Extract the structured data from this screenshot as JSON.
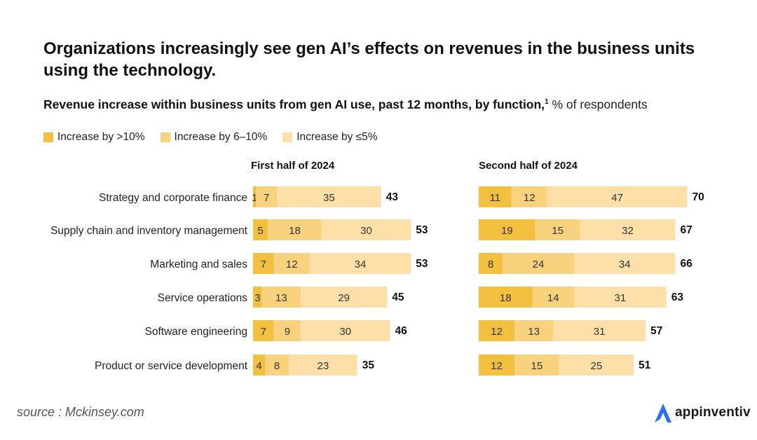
{
  "title": "Organizations increasingly see gen AI’s effects on revenues in the business units using the technology.",
  "subtitle": {
    "main": "Revenue increase within business units from gen AI use, past 12 months, by function,",
    "footnote_marker": "1",
    "unit": " % of respondents"
  },
  "source": "source : Mckinsey.com",
  "logo_text": "appinventiv",
  "colors": {
    "seg1": "#f2bf3f",
    "seg2": "#f8d27d",
    "seg3": "#fde0a8",
    "logo_blue": "#2e6df6"
  },
  "chart_data": {
    "type": "bar",
    "orientation": "horizontal",
    "stacked": true,
    "legend": [
      {
        "name": "Increase by >10%",
        "color": "#f2bf3f"
      },
      {
        "name": "Increase by 6–10%",
        "color": "#f8d27d"
      },
      {
        "name": "Increase by ≤5%",
        "color": "#fde0a8"
      }
    ],
    "categories": [
      "Strategy and corporate finance",
      "Supply chain and inventory management",
      "Marketing and sales",
      "Service operations",
      "Software engineering",
      "Product or service development"
    ],
    "panels": [
      {
        "title": "First half of 2024",
        "series": [
          {
            "name": "Increase by >10%",
            "values": [
              1,
              5,
              7,
              3,
              7,
              4
            ]
          },
          {
            "name": "Increase by 6–10%",
            "values": [
              7,
              18,
              12,
              13,
              9,
              8
            ]
          },
          {
            "name": "Increase by ≤5%",
            "values": [
              35,
              30,
              34,
              29,
              30,
              23
            ]
          }
        ],
        "totals": [
          43,
          53,
          53,
          45,
          46,
          35
        ]
      },
      {
        "title": "Second half of 2024",
        "series": [
          {
            "name": "Increase by >10%",
            "values": [
              11,
              19,
              8,
              18,
              12,
              12
            ]
          },
          {
            "name": "Increase by 6–10%",
            "values": [
              12,
              15,
              24,
              14,
              13,
              15
            ]
          },
          {
            "name": "Increase by ≤5%",
            "values": [
              47,
              32,
              34,
              31,
              31,
              25
            ]
          }
        ],
        "totals": [
          70,
          67,
          66,
          63,
          57,
          51
        ]
      }
    ]
  }
}
